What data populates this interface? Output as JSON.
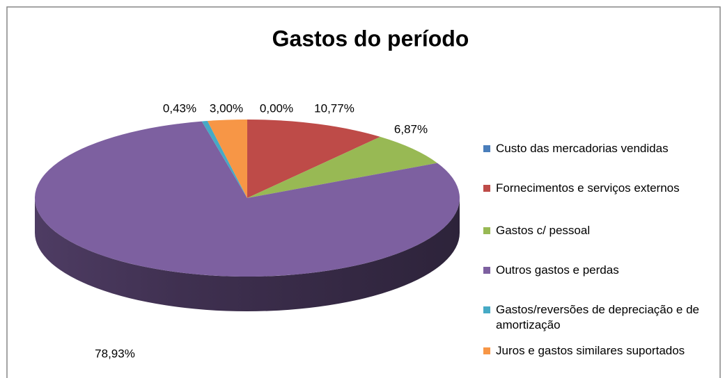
{
  "chart_data": {
    "type": "pie",
    "title": "Gastos do período",
    "categories": [
      "Custo das mercadorias vendidas",
      "Fornecimentos e serviços externos",
      "Gastos c/ pessoal",
      "Outros gastos e perdas",
      "Gastos/reversões de depreciação e de amortização",
      "Juros e gastos similares suportados"
    ],
    "values": [
      0.0,
      10.77,
      6.87,
      78.93,
      0.43,
      3.0
    ],
    "value_labels": [
      "0,00%",
      "10,77%",
      "6,87%",
      "78,93%",
      "0,43%",
      "3,00%"
    ],
    "colors": [
      "#4a7ebb",
      "#be4b48",
      "#98b954",
      "#7d60a0",
      "#46aac5",
      "#f79646"
    ],
    "legend": "right"
  }
}
